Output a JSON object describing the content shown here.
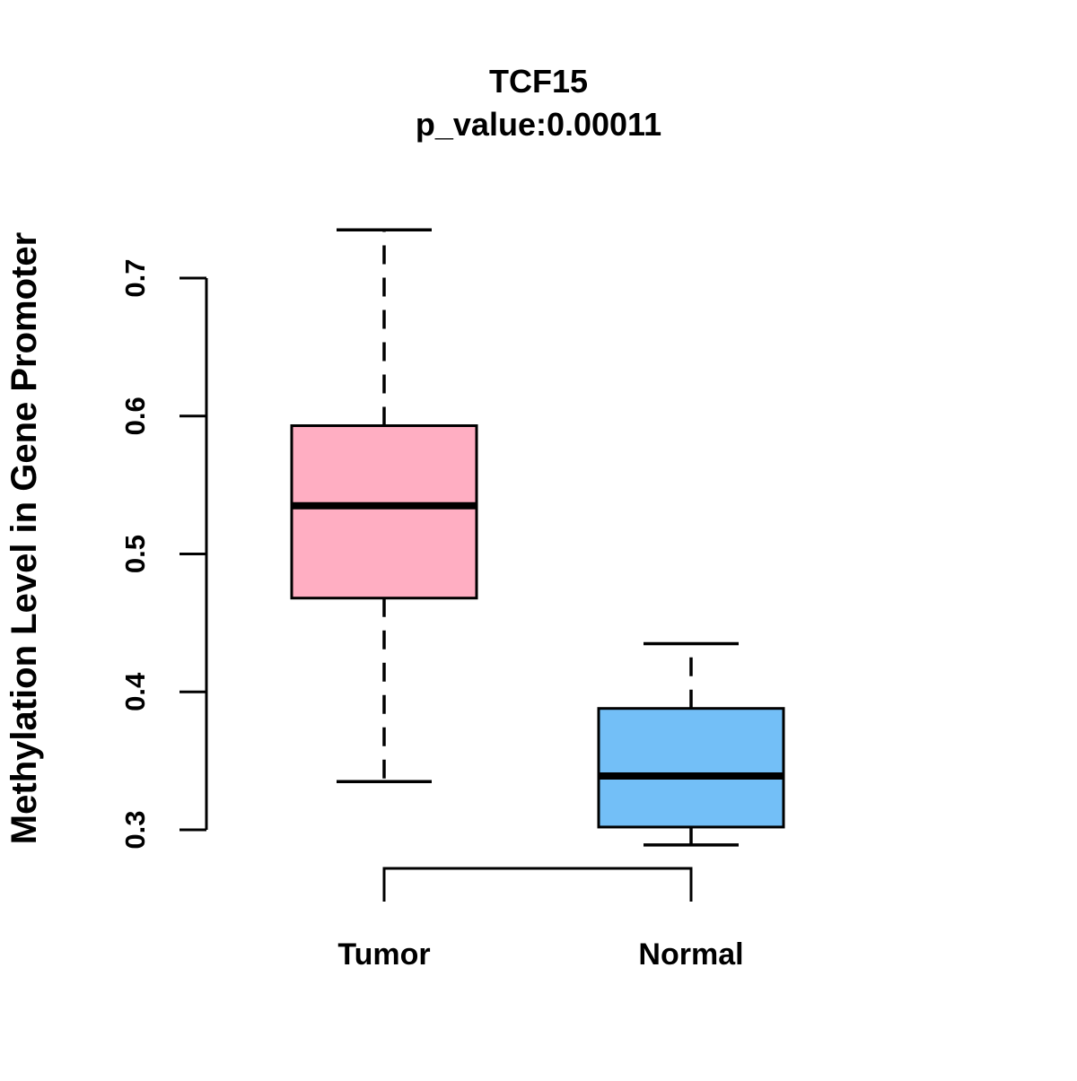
{
  "chart_data": {
    "type": "boxplot",
    "title": "TCF15",
    "subtitle": "p_value:0.00011",
    "ylabel": "Methylation Level in Gene Promoter",
    "xlabel": "",
    "categories": [
      "Tumor",
      "Normal"
    ],
    "yticks": [
      0.3,
      0.4,
      0.5,
      0.6,
      0.7
    ],
    "ylim": [
      0.3,
      0.7
    ],
    "grid": false,
    "legend": "none",
    "whisker_style": "dashed",
    "series": [
      {
        "name": "Tumor",
        "fill_color": "#FFAEC2",
        "stroke_color": "#000000",
        "stats": {
          "whisker_low": 0.335,
          "q1": 0.468,
          "median": 0.535,
          "q3": 0.593,
          "whisker_high": 0.735
        }
      },
      {
        "name": "Normal",
        "fill_color": "#73BFF7",
        "stroke_color": "#000000",
        "stats": {
          "whisker_low": 0.289,
          "q1": 0.302,
          "median": 0.339,
          "q3": 0.388,
          "whisker_high": 0.435
        }
      }
    ]
  }
}
